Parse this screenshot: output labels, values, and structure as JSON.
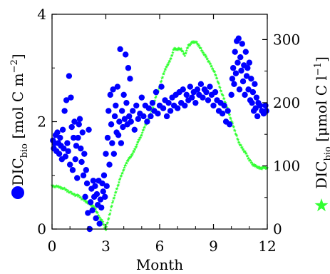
{
  "chart_data": {
    "type": "scatter",
    "xlabel": "Month",
    "ylabel_left": {
      "base": "DIC",
      "sub": "bio",
      "unit": " [mol C m",
      "sup": "−2",
      "close": "]"
    },
    "ylabel_right": {
      "base": "DIC",
      "sub": "bio",
      "unit": " [μmol C l",
      "sup": "−1",
      "close": "]"
    },
    "xlim": [
      0,
      12
    ],
    "ylim_left": [
      0,
      4
    ],
    "ylim_right": [
      0,
      340
    ],
    "x_ticks": [
      0,
      3,
      6,
      9,
      12
    ],
    "x_tick_labels": [
      "0",
      "3",
      "6",
      "9",
      "12"
    ],
    "y_left_ticks": [
      0,
      2,
      4
    ],
    "y_left_tick_labels": [
      "0",
      "2",
      "4"
    ],
    "y_right_ticks": [
      0,
      100,
      200,
      300
    ],
    "y_right_tick_labels": [
      "0",
      "100",
      "200",
      "300"
    ],
    "grid": false,
    "series": [
      {
        "marker": "circle",
        "color": "#0000ff",
        "axis": "left",
        "points": [
          [
            0.05,
            1.65
          ],
          [
            0.1,
            1.5
          ],
          [
            0.15,
            1.6
          ],
          [
            0.2,
            1.75
          ],
          [
            0.25,
            1.45
          ],
          [
            0.3,
            1.8
          ],
          [
            0.35,
            1.6
          ],
          [
            0.4,
            1.4
          ],
          [
            0.45,
            1.7
          ],
          [
            0.5,
            1.55
          ],
          [
            0.55,
            1.3
          ],
          [
            0.6,
            1.85
          ],
          [
            0.65,
            1.5
          ],
          [
            0.7,
            2.2
          ],
          [
            0.75,
            1.35
          ],
          [
            0.8,
            2.4
          ],
          [
            0.85,
            1.6
          ],
          [
            0.9,
            1.45
          ],
          [
            0.95,
            2.85
          ],
          [
            1.0,
            1.2
          ],
          [
            1.05,
            2.45
          ],
          [
            1.1,
            1.9
          ],
          [
            1.15,
            1.1
          ],
          [
            1.2,
            1.7
          ],
          [
            1.25,
            2.0
          ],
          [
            1.3,
            1.3
          ],
          [
            1.35,
            1.55
          ],
          [
            1.4,
            0.95
          ],
          [
            1.45,
            1.7
          ],
          [
            1.5,
            1.95
          ],
          [
            1.55,
            2.05
          ],
          [
            1.6,
            1.5
          ],
          [
            1.65,
            1.25
          ],
          [
            1.7,
            1.8
          ],
          [
            1.75,
            1.0
          ],
          [
            1.8,
            1.4
          ],
          [
            1.85,
            0.6
          ],
          [
            1.9,
            1.1
          ],
          [
            1.95,
            0.85
          ],
          [
            2.0,
            0.3
          ],
          [
            2.05,
            1.85
          ],
          [
            2.1,
            0.0
          ],
          [
            2.15,
            0.5
          ],
          [
            2.2,
            0.75
          ],
          [
            2.25,
            0.35
          ],
          [
            2.3,
            0.9
          ],
          [
            2.35,
            0.6
          ],
          [
            2.4,
            0.8
          ],
          [
            2.45,
            0.2
          ],
          [
            2.5,
            0.65
          ],
          [
            2.55,
            0.45
          ],
          [
            2.6,
            0.9
          ],
          [
            2.65,
            0.1
          ],
          [
            2.7,
            0.55
          ],
          [
            2.75,
            0.4
          ],
          [
            2.8,
            0.85
          ],
          [
            2.85,
            0.7
          ],
          [
            2.9,
            1.0
          ],
          [
            2.95,
            0.6
          ],
          [
            3.0,
            1.4
          ],
          [
            3.05,
            0.8
          ],
          [
            3.1,
            1.7
          ],
          [
            3.15,
            2.2
          ],
          [
            3.2,
            1.2
          ],
          [
            3.25,
            2.5
          ],
          [
            3.3,
            1.95
          ],
          [
            3.35,
            1.6
          ],
          [
            3.4,
            2.6
          ],
          [
            3.45,
            1.4
          ],
          [
            3.5,
            2.1
          ],
          [
            3.55,
            2.3
          ],
          [
            3.6,
            1.8
          ],
          [
            3.65,
            2.65
          ],
          [
            3.7,
            1.75
          ],
          [
            3.75,
            2.0
          ],
          [
            3.8,
            3.35
          ],
          [
            3.85,
            1.6
          ],
          [
            3.9,
            2.2
          ],
          [
            3.95,
            1.9
          ],
          [
            4.0,
            2.5
          ],
          [
            4.05,
            2.05
          ],
          [
            4.1,
            3.25
          ],
          [
            4.15,
            2.35
          ],
          [
            4.2,
            1.95
          ],
          [
            4.25,
            3.0
          ],
          [
            4.3,
            2.1
          ],
          [
            4.35,
            2.8
          ],
          [
            4.4,
            2.0
          ],
          [
            4.5,
            2.2
          ],
          [
            4.6,
            1.85
          ],
          [
            4.7,
            2.3
          ],
          [
            4.8,
            2.05
          ],
          [
            4.9,
            2.15
          ],
          [
            5.0,
            2.45
          ],
          [
            5.1,
            2.1
          ],
          [
            5.2,
            2.3
          ],
          [
            5.3,
            2.0
          ],
          [
            5.4,
            2.25
          ],
          [
            5.5,
            2.1
          ],
          [
            5.6,
            2.35
          ],
          [
            5.7,
            2.2
          ],
          [
            5.8,
            2.55
          ],
          [
            5.9,
            2.15
          ],
          [
            6.0,
            2.3
          ],
          [
            6.1,
            2.65
          ],
          [
            6.2,
            2.25
          ],
          [
            6.3,
            2.4
          ],
          [
            6.4,
            2.1
          ],
          [
            6.5,
            2.35
          ],
          [
            6.6,
            2.2
          ],
          [
            6.7,
            2.45
          ],
          [
            6.8,
            2.3
          ],
          [
            6.9,
            2.5
          ],
          [
            7.0,
            2.25
          ],
          [
            7.1,
            2.55
          ],
          [
            7.2,
            2.35
          ],
          [
            7.3,
            2.6
          ],
          [
            7.4,
            2.3
          ],
          [
            7.5,
            2.5
          ],
          [
            7.6,
            2.4
          ],
          [
            7.7,
            2.65
          ],
          [
            7.8,
            2.45
          ],
          [
            7.9,
            2.55
          ],
          [
            8.0,
            2.35
          ],
          [
            8.1,
            2.6
          ],
          [
            8.2,
            2.5
          ],
          [
            8.3,
            2.7
          ],
          [
            8.4,
            2.45
          ],
          [
            8.5,
            2.6
          ],
          [
            8.6,
            2.55
          ],
          [
            8.7,
            2.4
          ],
          [
            8.8,
            2.65
          ],
          [
            8.9,
            2.5
          ],
          [
            9.0,
            2.3
          ],
          [
            9.1,
            2.55
          ],
          [
            9.2,
            2.4
          ],
          [
            9.3,
            2.2
          ],
          [
            9.4,
            2.35
          ],
          [
            9.5,
            2.15
          ],
          [
            9.6,
            2.3
          ],
          [
            9.7,
            2.0
          ],
          [
            9.8,
            2.2
          ],
          [
            9.9,
            1.95
          ],
          [
            10.0,
            2.5
          ],
          [
            10.05,
            2.8
          ],
          [
            10.1,
            3.0
          ],
          [
            10.15,
            2.7
          ],
          [
            10.2,
            3.3
          ],
          [
            10.25,
            2.9
          ],
          [
            10.3,
            3.5
          ],
          [
            10.35,
            3.1
          ],
          [
            10.4,
            3.55
          ],
          [
            10.45,
            2.6
          ],
          [
            10.5,
            3.2
          ],
          [
            10.55,
            2.95
          ],
          [
            10.6,
            3.45
          ],
          [
            10.65,
            2.75
          ],
          [
            10.7,
            3.05
          ],
          [
            10.75,
            2.5
          ],
          [
            10.8,
            3.3
          ],
          [
            10.85,
            2.85
          ],
          [
            10.9,
            3.0
          ],
          [
            10.95,
            2.6
          ],
          [
            11.0,
            3.1
          ],
          [
            11.05,
            2.4
          ],
          [
            11.1,
            2.8
          ],
          [
            11.15,
            2.35
          ],
          [
            11.2,
            2.55
          ],
          [
            11.25,
            2.2
          ],
          [
            11.3,
            2.7
          ],
          [
            11.35,
            2.25
          ],
          [
            11.4,
            2.45
          ],
          [
            11.45,
            2.1
          ],
          [
            11.5,
            2.35
          ],
          [
            11.6,
            2.3
          ],
          [
            11.7,
            2.2
          ],
          [
            11.8,
            2.15
          ],
          [
            11.9,
            2.3
          ],
          [
            11.95,
            2.2
          ]
        ]
      },
      {
        "marker": "star",
        "color": "#33ff33",
        "axis": "right",
        "points": [
          [
            0.0,
            68
          ],
          [
            0.3,
            67
          ],
          [
            0.6,
            65
          ],
          [
            0.9,
            60
          ],
          [
            1.2,
            55
          ],
          [
            1.5,
            52
          ],
          [
            1.8,
            45
          ],
          [
            2.0,
            42
          ],
          [
            2.2,
            38
          ],
          [
            2.4,
            33
          ],
          [
            2.6,
            20
          ],
          [
            2.8,
            12
          ],
          [
            3.0,
            0
          ],
          [
            3.2,
            22
          ],
          [
            3.4,
            45
          ],
          [
            3.6,
            62
          ],
          [
            3.8,
            80
          ],
          [
            4.0,
            95
          ],
          [
            4.2,
            108
          ],
          [
            4.4,
            115
          ],
          [
            4.6,
            125
          ],
          [
            4.8,
            138
          ],
          [
            5.0,
            150
          ],
          [
            5.2,
            165
          ],
          [
            5.4,
            175
          ],
          [
            5.6,
            190
          ],
          [
            5.8,
            210
          ],
          [
            6.0,
            225
          ],
          [
            6.2,
            245
          ],
          [
            6.4,
            258
          ],
          [
            6.6,
            268
          ],
          [
            6.8,
            285
          ],
          [
            7.0,
            285
          ],
          [
            7.2,
            285
          ],
          [
            7.4,
            275
          ],
          [
            7.6,
            290
          ],
          [
            7.8,
            295
          ],
          [
            8.0,
            297
          ],
          [
            8.2,
            290
          ],
          [
            8.4,
            280
          ],
          [
            8.6,
            272
          ],
          [
            8.8,
            262
          ],
          [
            9.0,
            252
          ],
          [
            9.2,
            238
          ],
          [
            9.4,
            220
          ],
          [
            9.6,
            205
          ],
          [
            9.8,
            188
          ],
          [
            10.0,
            172
          ],
          [
            10.2,
            155
          ],
          [
            10.4,
            138
          ],
          [
            10.6,
            128
          ],
          [
            10.8,
            120
          ],
          [
            11.0,
            110
          ],
          [
            11.2,
            102
          ],
          [
            11.4,
            99
          ],
          [
            11.6,
            96
          ],
          [
            11.8,
            97
          ],
          [
            12.0,
            97
          ]
        ]
      }
    ]
  }
}
